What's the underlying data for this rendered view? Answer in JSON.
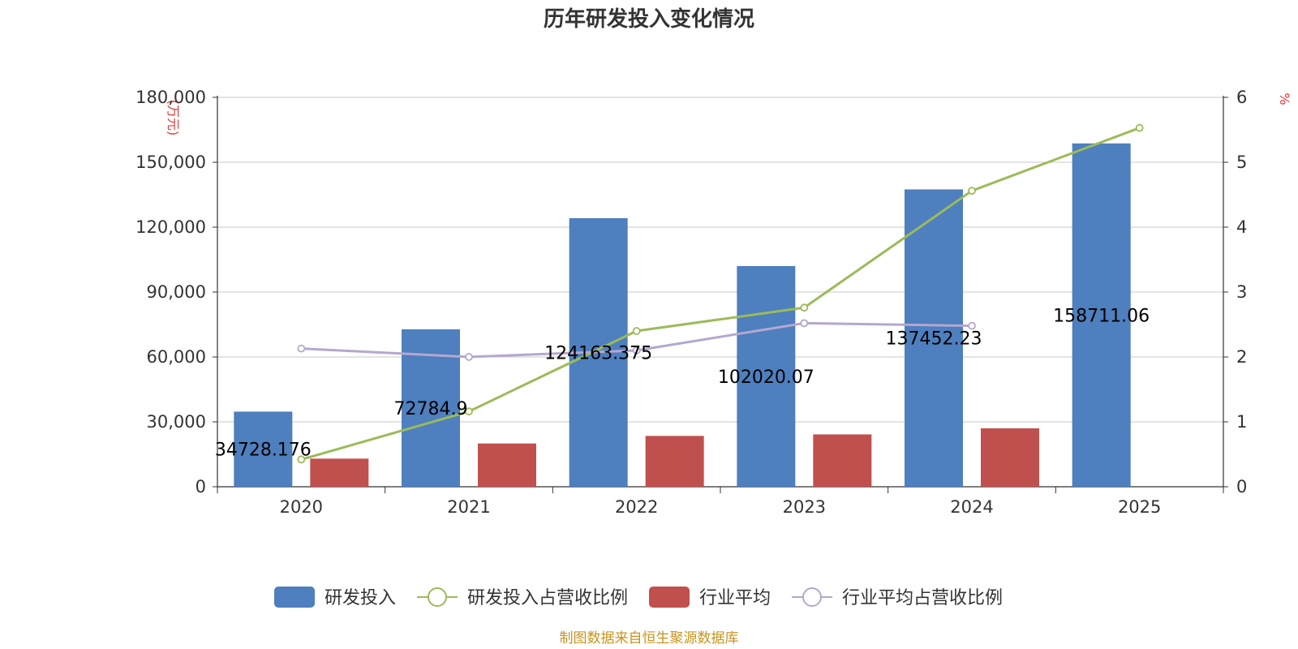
{
  "chart_data": {
    "type": "bar",
    "title": "历年研发投入变化情况",
    "categories": [
      "2020",
      "2021",
      "2022",
      "2023",
      "2024",
      "2025"
    ],
    "y_left": {
      "unit_label": "(万元)",
      "ticks": [
        "0",
        "30,000",
        "60,000",
        "90,000",
        "120,000",
        "150,000",
        "180,000"
      ],
      "ylim": [
        0,
        180000
      ]
    },
    "y_right": {
      "unit_label": "%",
      "ticks": [
        "0",
        "1",
        "2",
        "3",
        "4",
        "5",
        "6"
      ],
      "ylim": [
        0,
        6
      ]
    },
    "series": [
      {
        "name": "研发投入",
        "kind": "bar",
        "axis": "left",
        "color": "#4e7fbe",
        "values": [
          34728.176,
          72784.9,
          124163.375,
          102020.07,
          137452.23,
          158711.06
        ],
        "labels": [
          "34728.176",
          "72784.9",
          "124163.375",
          "102020.07",
          "137452.23",
          "158711.06"
        ]
      },
      {
        "name": "研发投入占营收比例",
        "kind": "line",
        "axis": "right",
        "color": "#9bbb59",
        "values": [
          0.42,
          1.16,
          2.4,
          2.76,
          4.56,
          5.53
        ]
      },
      {
        "name": "行业平均",
        "kind": "bar",
        "axis": "left",
        "color": "#c0504d",
        "values": [
          13000,
          20000,
          23500,
          24200,
          27000,
          null
        ]
      },
      {
        "name": "行业平均占营收比例",
        "kind": "line",
        "axis": "right",
        "color": "#b5a7cf",
        "values": [
          2.13,
          2.0,
          2.1,
          2.52,
          2.48,
          null
        ]
      }
    ],
    "grid": true,
    "legend_position": "bottom"
  },
  "source_note": "制图数据来自恒生聚源数据库"
}
